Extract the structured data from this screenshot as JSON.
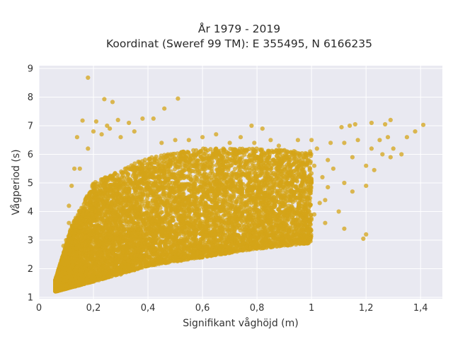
{
  "chart_data": {
    "type": "scatter",
    "title_lines": [
      "År 1979 - 2019",
      "Koordinat (Sweref 99 TM): E 355495, N 6166235"
    ],
    "xlabel": "Signifikant våghöjd (m)",
    "ylabel": "Vågperiod (s)",
    "xlim": [
      0,
      1.48
    ],
    "ylim": [
      0.95,
      9.1
    ],
    "x_ticks": [
      0,
      0.2,
      0.4,
      0.6,
      0.8,
      1.0,
      1.2,
      1.4
    ],
    "x_tick_labels": [
      "0",
      "0,2",
      "0,4",
      "0,6",
      "0,8",
      "1",
      "1,2",
      "1,4"
    ],
    "y_ticks": [
      1,
      2,
      3,
      4,
      5,
      6,
      7,
      8,
      9
    ],
    "y_tick_labels": [
      "1",
      "2",
      "3",
      "4",
      "5",
      "6",
      "7",
      "8",
      "9"
    ],
    "grid": true,
    "colors": {
      "marker": "#d4a418",
      "plot_bg": "#e9e9f1",
      "grid": "#ffffff"
    },
    "cloud_trend": {
      "description": "dense point cloud; period rises with wave height",
      "x_range": [
        0.06,
        1.0
      ],
      "lower_bound": [
        [
          0.06,
          1.2
        ],
        [
          0.2,
          1.55
        ],
        [
          0.4,
          2.1
        ],
        [
          0.6,
          2.4
        ],
        [
          0.8,
          2.7
        ],
        [
          1.0,
          2.9
        ]
      ],
      "upper_bound": [
        [
          0.06,
          1.6
        ],
        [
          0.12,
          3.5
        ],
        [
          0.2,
          5.0
        ],
        [
          0.4,
          5.9
        ],
        [
          0.6,
          6.2
        ],
        [
          0.8,
          6.2
        ],
        [
          1.0,
          6.1
        ]
      ]
    },
    "points": [
      [
        0.18,
        8.68
      ],
      [
        0.24,
        7.93
      ],
      [
        0.51,
        7.95
      ],
      [
        0.46,
        7.6
      ],
      [
        0.27,
        7.83
      ],
      [
        0.16,
        7.18
      ],
      [
        0.21,
        7.15
      ],
      [
        0.25,
        7.0
      ],
      [
        0.29,
        7.2
      ],
      [
        0.33,
        7.1
      ],
      [
        0.38,
        7.25
      ],
      [
        0.42,
        7.25
      ],
      [
        0.2,
        6.8
      ],
      [
        0.23,
        6.7
      ],
      [
        0.26,
        6.9
      ],
      [
        0.3,
        6.6
      ],
      [
        0.35,
        6.8
      ],
      [
        0.14,
        6.6
      ],
      [
        0.18,
        6.2
      ],
      [
        0.15,
        5.5
      ],
      [
        0.13,
        5.5
      ],
      [
        0.12,
        4.9
      ],
      [
        0.11,
        4.2
      ],
      [
        0.11,
        3.6
      ],
      [
        0.1,
        3.0
      ],
      [
        0.09,
        2.8
      ],
      [
        0.09,
        2.0
      ],
      [
        0.07,
        1.6
      ],
      [
        0.06,
        1.25
      ],
      [
        0.08,
        1.3
      ],
      [
        0.1,
        1.4
      ],
      [
        0.12,
        1.45
      ],
      [
        0.14,
        1.55
      ],
      [
        0.16,
        1.6
      ],
      [
        0.19,
        1.55
      ],
      [
        0.22,
        1.6
      ],
      [
        0.25,
        1.7
      ],
      [
        0.3,
        1.8
      ],
      [
        0.35,
        1.95
      ],
      [
        0.4,
        2.1
      ],
      [
        0.45,
        2.2
      ],
      [
        0.5,
        2.3
      ],
      [
        0.55,
        2.35
      ],
      [
        0.6,
        2.4
      ],
      [
        0.65,
        2.5
      ],
      [
        0.7,
        2.55
      ],
      [
        0.75,
        2.65
      ],
      [
        0.8,
        2.7
      ],
      [
        0.85,
        2.8
      ],
      [
        0.9,
        2.9
      ],
      [
        0.95,
        2.95
      ],
      [
        0.98,
        2.9
      ],
      [
        0.89,
        3.1
      ],
      [
        0.93,
        3.3
      ],
      [
        0.97,
        3.2
      ],
      [
        1.12,
        3.4
      ],
      [
        1.19,
        3.05
      ],
      [
        1.2,
        3.2
      ],
      [
        1.05,
        3.6
      ],
      [
        1.1,
        4.0
      ],
      [
        1.05,
        4.4
      ],
      [
        1.15,
        4.7
      ],
      [
        1.06,
        4.85
      ],
      [
        1.2,
        4.9
      ],
      [
        1.12,
        5.0
      ],
      [
        1.0,
        5.0
      ],
      [
        1.04,
        5.2
      ],
      [
        1.08,
        5.5
      ],
      [
        1.15,
        5.9
      ],
      [
        1.2,
        5.6
      ],
      [
        1.23,
        5.45
      ],
      [
        1.22,
        6.2
      ],
      [
        1.26,
        6.0
      ],
      [
        1.29,
        5.9
      ],
      [
        1.25,
        6.5
      ],
      [
        1.3,
        6.2
      ],
      [
        1.33,
        6.0
      ],
      [
        1.28,
        6.6
      ],
      [
        1.35,
        6.6
      ],
      [
        1.38,
        6.8
      ],
      [
        1.41,
        7.03
      ],
      [
        1.29,
        7.2
      ],
      [
        1.22,
        7.1
      ],
      [
        1.16,
        7.05
      ],
      [
        1.11,
        6.95
      ],
      [
        1.17,
        6.5
      ],
      [
        1.12,
        6.4
      ],
      [
        1.07,
        6.4
      ],
      [
        1.02,
        6.2
      ],
      [
        1.06,
        5.8
      ],
      [
        1.0,
        6.5
      ],
      [
        0.98,
        5.9
      ],
      [
        1.01,
        5.6
      ],
      [
        0.95,
        6.5
      ],
      [
        0.91,
        6.1
      ],
      [
        0.85,
        6.5
      ],
      [
        0.79,
        6.4
      ],
      [
        0.74,
        6.6
      ],
      [
        0.7,
        6.4
      ],
      [
        0.65,
        6.7
      ],
      [
        0.6,
        6.6
      ],
      [
        0.55,
        6.5
      ],
      [
        0.5,
        6.5
      ],
      [
        0.45,
        6.4
      ],
      [
        0.78,
        7.0
      ],
      [
        0.82,
        6.9
      ],
      [
        0.88,
        6.3
      ],
      [
        0.93,
        6.0
      ],
      [
        0.96,
        4.9
      ],
      [
        0.99,
        4.6
      ],
      [
        1.03,
        4.3
      ],
      [
        1.01,
        3.9
      ],
      [
        0.95,
        3.7
      ],
      [
        0.9,
        3.5
      ],
      [
        0.85,
        3.3
      ],
      [
        0.8,
        3.1
      ],
      [
        0.75,
        2.9
      ],
      [
        0.72,
        3.0
      ],
      [
        0.68,
        2.8
      ],
      [
        1.27,
        7.05
      ],
      [
        1.14,
        7.0
      ]
    ]
  }
}
